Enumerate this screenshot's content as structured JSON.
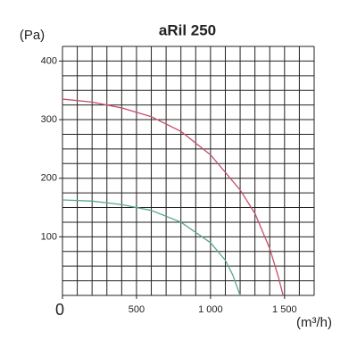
{
  "chart_data": {
    "type": "line",
    "title": "aRil 250",
    "y_label": "(Pa)",
    "x_label": "(m³/h)",
    "xlim": [
      0,
      1700
    ],
    "ylim": [
      0,
      425
    ],
    "xticks": [
      0,
      500,
      {
        "value": 1000,
        "label": "1 000"
      },
      {
        "value": 1500,
        "label": "1 500"
      }
    ],
    "yticks": [
      100,
      200,
      300,
      400
    ],
    "grid": true,
    "x_grid_step": 100,
    "y_grid_step": 25,
    "series": [
      {
        "color": "#c4506a",
        "x": [
          0,
          200,
          400,
          600,
          800,
          1000,
          1200,
          1300,
          1400,
          1460,
          1490
        ],
        "y": [
          335,
          330,
          320,
          305,
          280,
          240,
          180,
          140,
          80,
          30,
          0
        ]
      },
      {
        "color": "#5aa88a",
        "x": [
          0,
          200,
          400,
          600,
          800,
          1000,
          1100,
          1150,
          1200
        ],
        "y": [
          163,
          161,
          155,
          145,
          125,
          90,
          60,
          35,
          0
        ]
      }
    ]
  }
}
